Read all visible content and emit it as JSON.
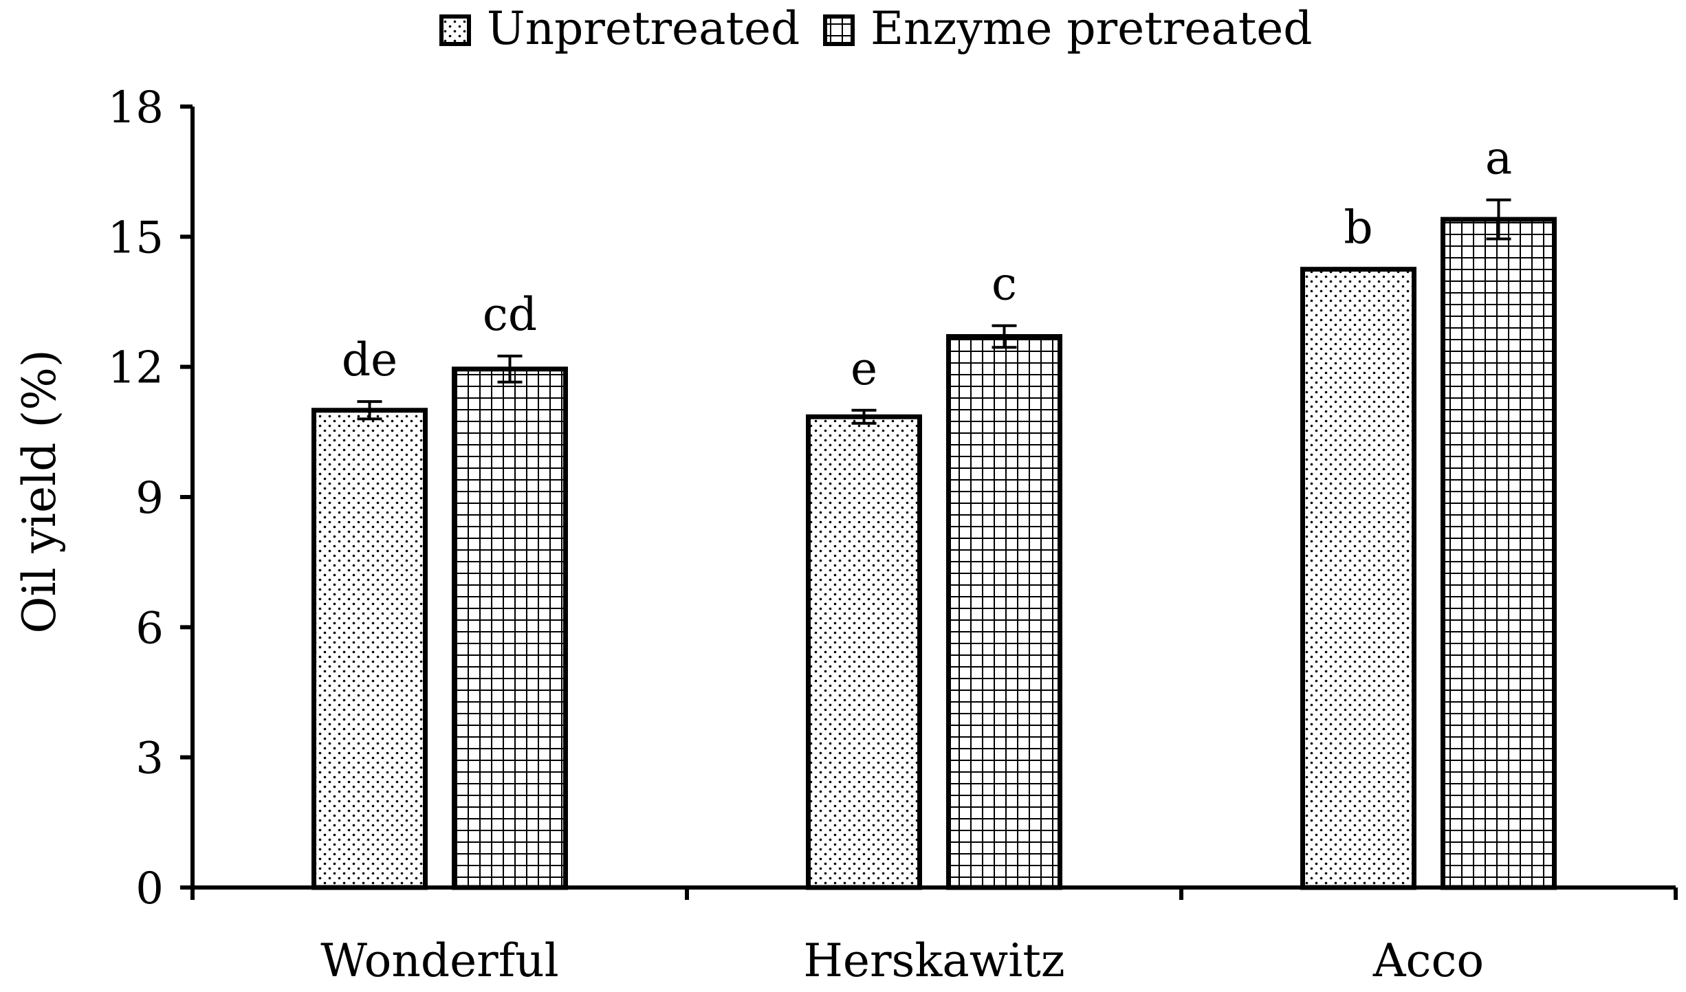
{
  "chart_data": {
    "type": "bar",
    "title": "",
    "xlabel": "",
    "ylabel": "Oil yield (%)",
    "ylim": [
      0,
      18
    ],
    "yticks": [
      0,
      3,
      6,
      9,
      12,
      15,
      18
    ],
    "categories": [
      "Wonderful",
      "Herskawitz",
      "Acco"
    ],
    "legend_position": "top-center",
    "grid": false,
    "series": [
      {
        "name": "Unpretreated",
        "pattern": "dots",
        "values": [
          11.0,
          10.85,
          14.25
        ],
        "errors": [
          0.2,
          0.15,
          0.0
        ],
        "significance": [
          "de",
          "e",
          "b"
        ]
      },
      {
        "name": "Enzyme pretreated",
        "pattern": "grid",
        "values": [
          11.95,
          12.7,
          15.4
        ],
        "errors": [
          0.3,
          0.25,
          0.45
        ],
        "significance": [
          "cd",
          "c",
          "a"
        ]
      }
    ],
    "colors": {
      "bar_stroke": "#000000",
      "bar_fill": "#ffffff",
      "pattern": "#000000"
    }
  }
}
